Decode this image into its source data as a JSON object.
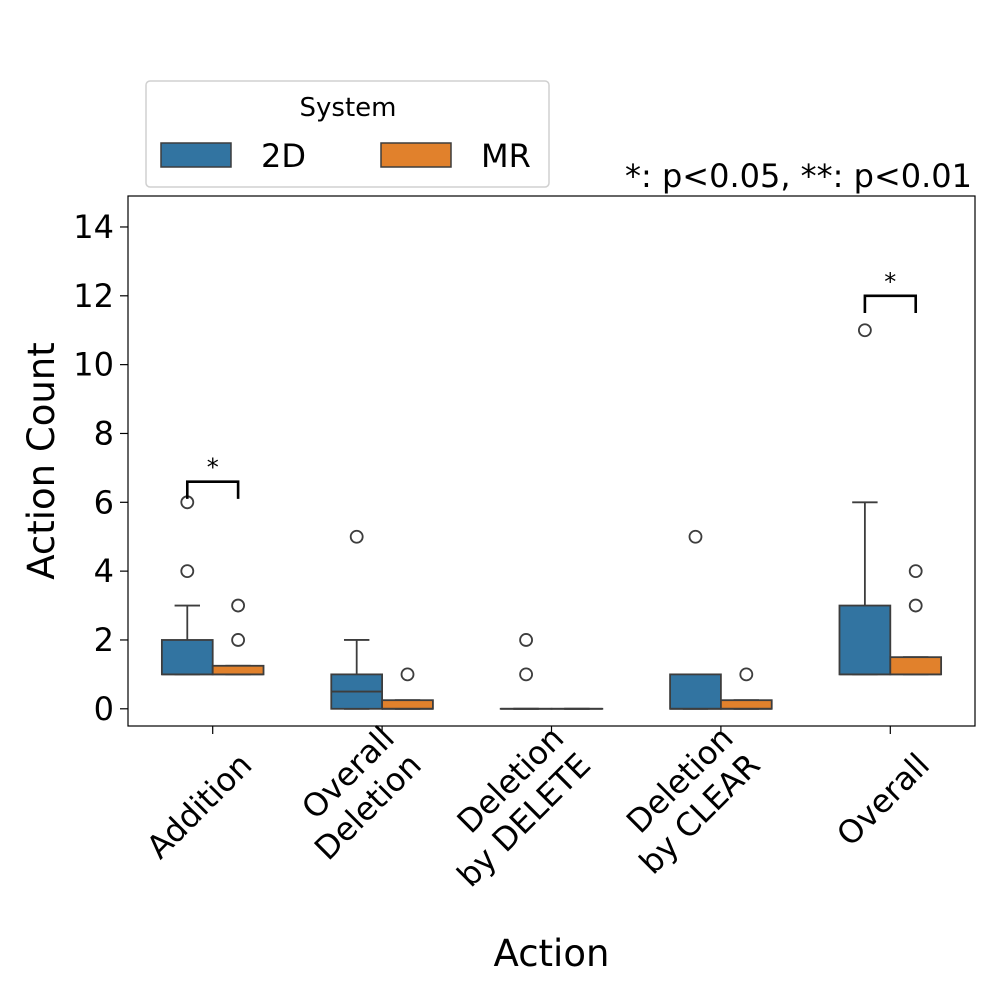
{
  "chart_data": {
    "type": "box",
    "xlabel": "Action",
    "ylabel": "Action Count",
    "ylim": [
      -0.5,
      14.9
    ],
    "yticks": [
      0,
      2,
      4,
      6,
      8,
      10,
      12,
      14
    ],
    "categories": [
      "Addition",
      "Overall\nDeletion",
      "Deletion\nby DELETE",
      "Deletion\nby CLEAR",
      "Overall"
    ],
    "legend": {
      "title": "System",
      "entries": [
        "2D",
        "MR"
      ],
      "placement": "top-left, outside above plot"
    },
    "note": "*: p<0.05, **: p<0.01",
    "colors": {
      "2D": "#3274a1",
      "MR": "#e1812c",
      "line": "#3d3d3d"
    },
    "series": [
      {
        "name": "2D",
        "boxes": [
          {
            "q1": 1,
            "median": 1,
            "q3": 2,
            "whislo": 1,
            "whishi": 3,
            "fliers": [
              4,
              6
            ]
          },
          {
            "q1": 0,
            "median": 0.5,
            "q3": 1,
            "whislo": 0,
            "whishi": 2,
            "fliers": [
              5
            ]
          },
          {
            "q1": 0,
            "median": 0,
            "q3": 0,
            "whislo": 0,
            "whishi": 0,
            "fliers": [
              1,
              2
            ]
          },
          {
            "q1": 0,
            "median": 0,
            "q3": 1,
            "whislo": 0,
            "whishi": 1,
            "fliers": [
              5
            ]
          },
          {
            "q1": 1,
            "median": 1,
            "q3": 3,
            "whislo": 1,
            "whishi": 6,
            "fliers": [
              11
            ]
          }
        ]
      },
      {
        "name": "MR",
        "boxes": [
          {
            "q1": 1,
            "median": 1,
            "q3": 1.25,
            "whislo": 1,
            "whishi": 1.25,
            "fliers": [
              2,
              3
            ]
          },
          {
            "q1": 0,
            "median": 0,
            "q3": 0.25,
            "whislo": 0,
            "whishi": 0.25,
            "fliers": [
              1
            ]
          },
          {
            "q1": 0,
            "median": 0,
            "q3": 0,
            "whislo": 0,
            "whishi": 0,
            "fliers": []
          },
          {
            "q1": 0,
            "median": 0,
            "q3": 0.25,
            "whislo": 0,
            "whishi": 0.25,
            "fliers": [
              1
            ]
          },
          {
            "q1": 1,
            "median": 1,
            "q3": 1.5,
            "whislo": 1,
            "whishi": 1.5,
            "fliers": [
              3,
              4
            ]
          }
        ]
      }
    ],
    "significance": [
      {
        "category": "Addition",
        "label": "*",
        "y": 6.6
      },
      {
        "category": "Overall",
        "label": "*",
        "y": 12.0
      }
    ]
  }
}
